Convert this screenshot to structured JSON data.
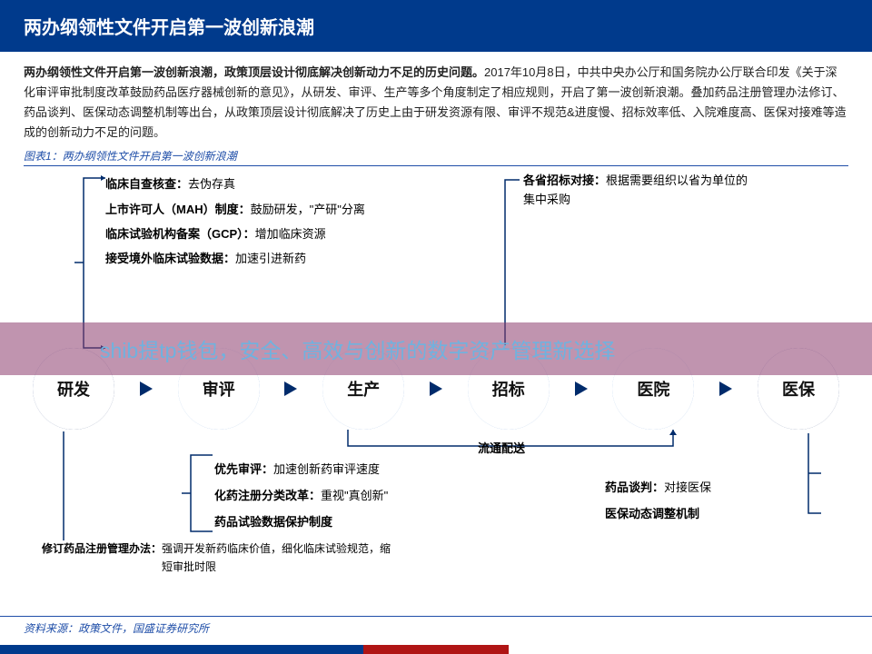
{
  "header": {
    "title": "两办纲领性文件开启第一波创新浪潮"
  },
  "intro": {
    "bold_lead": "两办纲领性文件开启第一波创新浪潮，政策顶层设计彻底解决创新动力不足的历史问题。",
    "body": "2017年10月8日，中共中央办公厅和国务院办公厅联合印发《关于深化审评审批制度改革鼓励药品医疗器械创新的意见》，从研发、审评、生产等多个角度制定了相应规则，开启了第一波创新浪潮。叠加药品注册管理办法修订、药品谈判、医保动态调整机制等出台，从政策顶层设计彻底解决了历史上由于研发资源有限、审评不规范&进度慢、招标效率低、入院难度高、医保对接难等造成的创新动力不足的问题。"
  },
  "chart_label": "图表1：两办纲领性文件开启第一波创新浪潮",
  "watermark": "shib提tp钱包，安全、高效与创新的数字资产管理新选择",
  "stages": [
    {
      "label": "研发",
      "variant": "dark"
    },
    {
      "label": "审评",
      "variant": "light"
    },
    {
      "label": "生产",
      "variant": "light"
    },
    {
      "label": "招标",
      "variant": "light"
    },
    {
      "label": "医院",
      "variant": "light"
    },
    {
      "label": "医保",
      "variant": "dark"
    }
  ],
  "top_left_items": [
    {
      "b": "临床自查核查：",
      "t": "去伪存真"
    },
    {
      "b": "上市许可人（MAH）制度：",
      "t": "鼓励研发，\"产研\"分离"
    },
    {
      "b": "临床试验机构备案（GCP）：",
      "t": "增加临床资源"
    },
    {
      "b": "接受境外临床试验数据：",
      "t": "加速引进新药"
    }
  ],
  "top_right_items": [
    {
      "b": "各省招标对接：",
      "t": "根据需要组织以省为单位的集中采购"
    }
  ],
  "flow_mid_label": "流通配送",
  "bottom_left_items": [
    {
      "b": "优先审评：",
      "t": "加速创新药审评速度"
    },
    {
      "b": "化药注册分类改革：",
      "t": "重视\"真创新\""
    },
    {
      "b": "药品试验数据保护制度",
      "t": ""
    }
  ],
  "bottom_right_items": [
    {
      "b": "药品谈判：",
      "t": "对接医保"
    },
    {
      "b": "医保动态调整机制",
      "t": ""
    }
  ],
  "footnote": {
    "b": "修订药品注册管理办法：",
    "t": "强调开发新药临床价值，细化临床试验规范，缩短审批时限"
  },
  "source": "资料来源：政策文件，国盛证券研究所",
  "colors": {
    "header_bg": "#003a8c",
    "accent": "#1f4ea8",
    "dark_donut": "#0e2a70",
    "light_donut": "#5f94d6",
    "watermark_bg": "rgba(140,60,110,0.55)",
    "watermark_text": "#6fb2df",
    "footer_red": "#b01515"
  }
}
